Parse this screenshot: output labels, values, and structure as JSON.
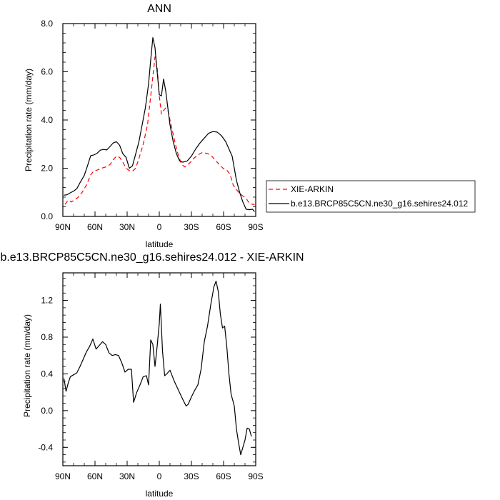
{
  "chart_data": [
    {
      "type": "line",
      "title": "ANN",
      "xlabel": "latitude",
      "ylabel": "Precipitation rate (mm/day)",
      "xlim": [
        90,
        -90
      ],
      "ylim": [
        0,
        8
      ],
      "x_ticks": [
        90,
        60,
        30,
        0,
        -30,
        -60,
        -90
      ],
      "x_tick_labels": [
        "90N",
        "60N",
        "30N",
        "0",
        "30S",
        "60S",
        "90S"
      ],
      "y_ticks": [
        0,
        2,
        4,
        6,
        8
      ],
      "y_tick_labels": [
        "0.0",
        "2.0",
        "4.0",
        "6.0",
        "8.0"
      ],
      "grid": false,
      "legend_placement": "right-outside",
      "series": [
        {
          "name": "XIE-ARKIN",
          "color": "#ff0000",
          "style": "dashed",
          "points": [
            [
              88,
              0.5
            ],
            [
              85,
              0.68
            ],
            [
              82,
              0.6
            ],
            [
              79,
              0.7
            ],
            [
              76,
              0.78
            ],
            [
              72,
              1.0
            ],
            [
              68,
              1.3
            ],
            [
              64,
              1.72
            ],
            [
              61,
              1.9
            ],
            [
              58,
              1.92
            ],
            [
              54,
              2.0
            ],
            [
              50,
              2.05
            ],
            [
              46,
              2.15
            ],
            [
              43,
              2.35
            ],
            [
              40,
              2.5
            ],
            [
              37,
              2.45
            ],
            [
              34,
              2.25
            ],
            [
              31,
              2.0
            ],
            [
              28,
              1.9
            ],
            [
              25,
              1.88
            ],
            [
              22,
              2.0
            ],
            [
              19,
              2.4
            ],
            [
              15,
              3.0
            ],
            [
              11,
              3.8
            ],
            [
              8,
              5.0
            ],
            [
              6,
              5.8
            ],
            [
              4,
              6.62
            ],
            [
              2,
              6.2
            ],
            [
              0,
              5.0
            ],
            [
              -2,
              4.25
            ],
            [
              -4,
              4.4
            ],
            [
              -6,
              4.5
            ],
            [
              -8,
              4.4
            ],
            [
              -11,
              3.8
            ],
            [
              -15,
              3.0
            ],
            [
              -18,
              2.5
            ],
            [
              -21,
              2.15
            ],
            [
              -24,
              2.05
            ],
            [
              -28,
              2.2
            ],
            [
              -32,
              2.4
            ],
            [
              -36,
              2.55
            ],
            [
              -40,
              2.65
            ],
            [
              -44,
              2.62
            ],
            [
              -48,
              2.55
            ],
            [
              -52,
              2.35
            ],
            [
              -56,
              2.15
            ],
            [
              -60,
              1.98
            ],
            [
              -63,
              1.92
            ],
            [
              -66,
              1.75
            ],
            [
              -69,
              1.3
            ],
            [
              -72,
              1.12
            ],
            [
              -75,
              0.95
            ],
            [
              -78,
              0.85
            ],
            [
              -81,
              0.75
            ],
            [
              -84,
              0.55
            ],
            [
              -87,
              0.5
            ],
            [
              -89,
              0.5
            ]
          ]
        },
        {
          "name": "b.e13.BRCP85C5CN.ne30_g16.sehires24.012",
          "color": "#000000",
          "style": "solid",
          "points": [
            [
              89,
              0.88
            ],
            [
              86,
              0.9
            ],
            [
              83,
              0.98
            ],
            [
              80,
              1.05
            ],
            [
              77,
              1.15
            ],
            [
              74,
              1.4
            ],
            [
              70,
              1.7
            ],
            [
              67,
              2.1
            ],
            [
              64,
              2.52
            ],
            [
              61,
              2.55
            ],
            [
              58,
              2.62
            ],
            [
              55,
              2.75
            ],
            [
              52,
              2.78
            ],
            [
              49,
              2.76
            ],
            [
              46,
              2.9
            ],
            [
              43,
              3.05
            ],
            [
              40,
              3.1
            ],
            [
              37,
              2.95
            ],
            [
              34,
              2.6
            ],
            [
              31,
              2.45
            ],
            [
              28,
              2.0
            ],
            [
              25,
              2.1
            ],
            [
              22,
              2.6
            ],
            [
              19,
              3.1
            ],
            [
              16,
              3.8
            ],
            [
              13,
              4.5
            ],
            [
              10,
              5.5
            ],
            [
              8,
              6.5
            ],
            [
              6,
              7.42
            ],
            [
              4,
              7.0
            ],
            [
              2,
              6.0
            ],
            [
              0,
              5.05
            ],
            [
              -2,
              5.0
            ],
            [
              -4,
              5.7
            ],
            [
              -6,
              5.2
            ],
            [
              -8,
              4.5
            ],
            [
              -10,
              3.8
            ],
            [
              -13,
              3.1
            ],
            [
              -16,
              2.6
            ],
            [
              -19,
              2.3
            ],
            [
              -22,
              2.25
            ],
            [
              -26,
              2.3
            ],
            [
              -30,
              2.5
            ],
            [
              -34,
              2.8
            ],
            [
              -38,
              3.05
            ],
            [
              -42,
              3.25
            ],
            [
              -46,
              3.45
            ],
            [
              -50,
              3.52
            ],
            [
              -54,
              3.5
            ],
            [
              -58,
              3.35
            ],
            [
              -62,
              3.1
            ],
            [
              -65,
              2.8
            ],
            [
              -68,
              2.5
            ],
            [
              -70,
              2.0
            ],
            [
              -72,
              1.5
            ],
            [
              -75,
              1.0
            ],
            [
              -78,
              0.6
            ],
            [
              -81,
              0.3
            ],
            [
              -84,
              0.28
            ],
            [
              -87,
              0.3
            ],
            [
              -89,
              0.2
            ]
          ]
        }
      ]
    },
    {
      "type": "line",
      "title": "b.e13.BRCP85C5CN.ne30_g16.sehires24.012 - XIE-ARKIN",
      "xlabel": "latitude",
      "ylabel": "Precipitation rate (mm/day)",
      "xlim": [
        90,
        -90
      ],
      "ylim": [
        -0.6,
        1.5
      ],
      "x_ticks": [
        90,
        60,
        30,
        0,
        -30,
        -60,
        -90
      ],
      "x_tick_labels": [
        "90N",
        "60N",
        "30N",
        "0",
        "30S",
        "60S",
        "90S"
      ],
      "y_ticks": [
        -0.4,
        0,
        0.4,
        0.8,
        1.2
      ],
      "y_tick_labels": [
        "-0.4",
        "0.0",
        "0.4",
        "0.8",
        "1.2"
      ],
      "grid": false,
      "series": [
        {
          "color": "#000000",
          "style": "solid",
          "points": [
            [
              89,
              0.35
            ],
            [
              87,
              0.21
            ],
            [
              85,
              0.3
            ],
            [
              83,
              0.37
            ],
            [
              80,
              0.39
            ],
            [
              77,
              0.41
            ],
            [
              74,
              0.48
            ],
            [
              71,
              0.56
            ],
            [
              68,
              0.64
            ],
            [
              65,
              0.7
            ],
            [
              62,
              0.78
            ],
            [
              59,
              0.67
            ],
            [
              56,
              0.71
            ],
            [
              53,
              0.75
            ],
            [
              50,
              0.72
            ],
            [
              47,
              0.63
            ],
            [
              44,
              0.6
            ],
            [
              41,
              0.61
            ],
            [
              38,
              0.6
            ],
            [
              35,
              0.52
            ],
            [
              32,
              0.42
            ],
            [
              29,
              0.45
            ],
            [
              26,
              0.45
            ],
            [
              24,
              0.09
            ],
            [
              21,
              0.2
            ],
            [
              18,
              0.28
            ],
            [
              15,
              0.37
            ],
            [
              12,
              0.38
            ],
            [
              10,
              0.28
            ],
            [
              8,
              0.77
            ],
            [
              6,
              0.72
            ],
            [
              4,
              0.48
            ],
            [
              2,
              0.7
            ],
            [
              0,
              0.95
            ],
            [
              -1,
              1.16
            ],
            [
              -3,
              0.65
            ],
            [
              -5,
              0.38
            ],
            [
              -7,
              0.4
            ],
            [
              -10,
              0.44
            ],
            [
              -14,
              0.32
            ],
            [
              -18,
              0.22
            ],
            [
              -22,
              0.12
            ],
            [
              -25,
              0.05
            ],
            [
              -27,
              0.07
            ],
            [
              -30,
              0.15
            ],
            [
              -33,
              0.22
            ],
            [
              -36,
              0.28
            ],
            [
              -39,
              0.45
            ],
            [
              -42,
              0.75
            ],
            [
              -45,
              0.92
            ],
            [
              -48,
              1.15
            ],
            [
              -51,
              1.35
            ],
            [
              -53,
              1.41
            ],
            [
              -55,
              1.3
            ],
            [
              -57,
              1.05
            ],
            [
              -59,
              0.9
            ],
            [
              -61,
              0.92
            ],
            [
              -63,
              0.7
            ],
            [
              -65,
              0.4
            ],
            [
              -67,
              0.18
            ],
            [
              -70,
              0.05
            ],
            [
              -72,
              -0.2
            ],
            [
              -74,
              -0.35
            ],
            [
              -76,
              -0.48
            ],
            [
              -78,
              -0.4
            ],
            [
              -80,
              -0.32
            ],
            [
              -82,
              -0.19
            ],
            [
              -84,
              -0.2
            ],
            [
              -86,
              -0.28
            ]
          ]
        }
      ]
    }
  ]
}
